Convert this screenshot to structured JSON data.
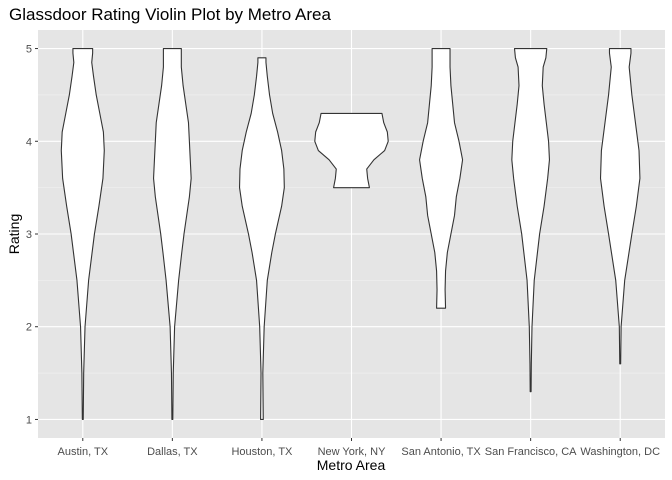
{
  "chart_data": {
    "type": "violin",
    "title": "Glassdoor Rating Violin Plot by Metro Area",
    "xlabel": "Metro Area",
    "ylabel": "Rating",
    "categories": [
      "Austin, TX",
      "Dallas, TX",
      "Houston, TX",
      "New York, NY",
      "San Antonio, TX",
      "San Francisco, CA",
      "Washington, DC"
    ],
    "ylim": [
      0.8,
      5.2
    ],
    "yticks": [
      1,
      2,
      3,
      4,
      5
    ],
    "grid": true,
    "legend": "none",
    "colors": {
      "panel": "#e5e5e5",
      "grid_major": "#ffffff",
      "grid_minor": "#f2f2f2",
      "violin_fill": "#ffffff",
      "violin_stroke": "#333333"
    },
    "violins": [
      {
        "category": "Austin, TX",
        "min": 1.0,
        "max": 5.0,
        "profile": [
          [
            1.0,
            0.01
          ],
          [
            1.5,
            0.02
          ],
          [
            2.0,
            0.05
          ],
          [
            2.5,
            0.13
          ],
          [
            3.0,
            0.26
          ],
          [
            3.3,
            0.36
          ],
          [
            3.6,
            0.45
          ],
          [
            3.9,
            0.48
          ],
          [
            4.1,
            0.46
          ],
          [
            4.3,
            0.38
          ],
          [
            4.5,
            0.3
          ],
          [
            4.7,
            0.24
          ],
          [
            4.85,
            0.2
          ],
          [
            4.95,
            0.22
          ],
          [
            5.0,
            0.22
          ]
        ]
      },
      {
        "category": "Dallas, TX",
        "min": 1.0,
        "max": 5.0,
        "profile": [
          [
            1.0,
            0.01
          ],
          [
            1.5,
            0.02
          ],
          [
            2.0,
            0.05
          ],
          [
            2.5,
            0.14
          ],
          [
            2.8,
            0.21
          ],
          [
            3.0,
            0.26
          ],
          [
            3.2,
            0.32
          ],
          [
            3.4,
            0.38
          ],
          [
            3.6,
            0.42
          ],
          [
            3.8,
            0.4
          ],
          [
            4.0,
            0.38
          ],
          [
            4.2,
            0.36
          ],
          [
            4.4,
            0.3
          ],
          [
            4.6,
            0.24
          ],
          [
            4.8,
            0.2
          ],
          [
            4.95,
            0.2
          ],
          [
            5.0,
            0.2
          ]
        ]
      },
      {
        "category": "Houston, TX",
        "min": 1.0,
        "max": 4.9,
        "profile": [
          [
            1.0,
            0.03
          ],
          [
            1.5,
            0.02
          ],
          [
            2.0,
            0.05
          ],
          [
            2.5,
            0.12
          ],
          [
            2.8,
            0.22
          ],
          [
            3.0,
            0.3
          ],
          [
            3.3,
            0.44
          ],
          [
            3.5,
            0.5
          ],
          [
            3.7,
            0.49
          ],
          [
            3.9,
            0.44
          ],
          [
            4.1,
            0.35
          ],
          [
            4.3,
            0.24
          ],
          [
            4.5,
            0.17
          ],
          [
            4.7,
            0.12
          ],
          [
            4.85,
            0.09
          ],
          [
            4.9,
            0.09
          ]
        ]
      },
      {
        "category": "New York, NY",
        "min": 3.5,
        "max": 4.3,
        "profile": [
          [
            3.5,
            0.4
          ],
          [
            3.55,
            0.38
          ],
          [
            3.6,
            0.36
          ],
          [
            3.7,
            0.34
          ],
          [
            3.8,
            0.5
          ],
          [
            3.9,
            0.74
          ],
          [
            4.0,
            0.82
          ],
          [
            4.1,
            0.8
          ],
          [
            4.2,
            0.72
          ],
          [
            4.3,
            0.68
          ]
        ]
      },
      {
        "category": "San Antonio, TX",
        "min": 2.2,
        "max": 5.0,
        "profile": [
          [
            2.2,
            0.1
          ],
          [
            2.4,
            0.09
          ],
          [
            2.6,
            0.1
          ],
          [
            2.8,
            0.14
          ],
          [
            3.0,
            0.22
          ],
          [
            3.2,
            0.3
          ],
          [
            3.4,
            0.34
          ],
          [
            3.6,
            0.42
          ],
          [
            3.8,
            0.48
          ],
          [
            4.0,
            0.4
          ],
          [
            4.2,
            0.3
          ],
          [
            4.4,
            0.26
          ],
          [
            4.6,
            0.22
          ],
          [
            4.8,
            0.2
          ],
          [
            5.0,
            0.2
          ]
        ]
      },
      {
        "category": "San Francisco, CA",
        "min": 1.3,
        "max": 5.0,
        "profile": [
          [
            1.3,
            0.01
          ],
          [
            1.6,
            0.015
          ],
          [
            2.0,
            0.03
          ],
          [
            2.5,
            0.08
          ],
          [
            3.0,
            0.2
          ],
          [
            3.3,
            0.3
          ],
          [
            3.6,
            0.38
          ],
          [
            3.8,
            0.42
          ],
          [
            4.0,
            0.4
          ],
          [
            4.2,
            0.35
          ],
          [
            4.4,
            0.3
          ],
          [
            4.6,
            0.26
          ],
          [
            4.8,
            0.28
          ],
          [
            4.9,
            0.34
          ],
          [
            5.0,
            0.36
          ]
        ]
      },
      {
        "category": "Washington, DC",
        "min": 1.6,
        "max": 5.0,
        "profile": [
          [
            1.6,
            0.01
          ],
          [
            2.0,
            0.02
          ],
          [
            2.5,
            0.1
          ],
          [
            3.0,
            0.26
          ],
          [
            3.3,
            0.36
          ],
          [
            3.6,
            0.44
          ],
          [
            3.9,
            0.42
          ],
          [
            4.2,
            0.34
          ],
          [
            4.5,
            0.26
          ],
          [
            4.8,
            0.2
          ],
          [
            4.95,
            0.24
          ],
          [
            5.0,
            0.24
          ]
        ]
      }
    ]
  }
}
